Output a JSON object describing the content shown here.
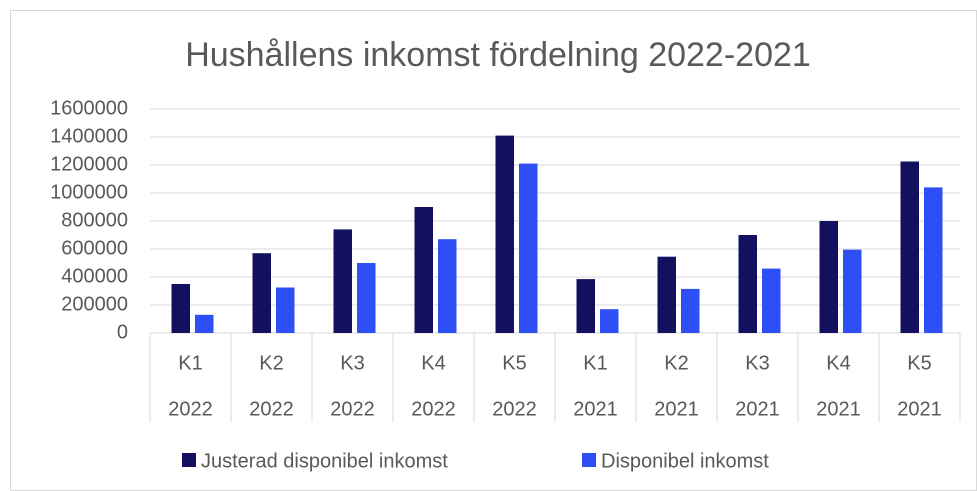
{
  "chart_data": {
    "type": "bar",
    "title": "Hushållens inkomst fördelning 2022-2021",
    "categories": [
      [
        "K1",
        "2022"
      ],
      [
        "K2",
        "2022"
      ],
      [
        "K3",
        "2022"
      ],
      [
        "K4",
        "2022"
      ],
      [
        "K5",
        "2022"
      ],
      [
        "K1",
        "2021"
      ],
      [
        "K2",
        "2021"
      ],
      [
        "K3",
        "2021"
      ],
      [
        "K4",
        "2021"
      ],
      [
        "K5",
        "2021"
      ]
    ],
    "series": [
      {
        "name": "Justerad disponibel inkomst",
        "color": "#13105f",
        "values": [
          350000,
          570000,
          740000,
          900000,
          1410000,
          385000,
          545000,
          700000,
          800000,
          1225000
        ]
      },
      {
        "name": "Disponibel inkomst",
        "color": "#2e4ff6",
        "values": [
          130000,
          325000,
          500000,
          670000,
          1210000,
          170000,
          315000,
          460000,
          595000,
          1040000
        ]
      }
    ],
    "ylim": [
      0,
      1600000
    ],
    "yticks": [
      0,
      200000,
      400000,
      600000,
      800000,
      1000000,
      1200000,
      1400000,
      1600000
    ],
    "grid": true,
    "legend": "bottom"
  }
}
